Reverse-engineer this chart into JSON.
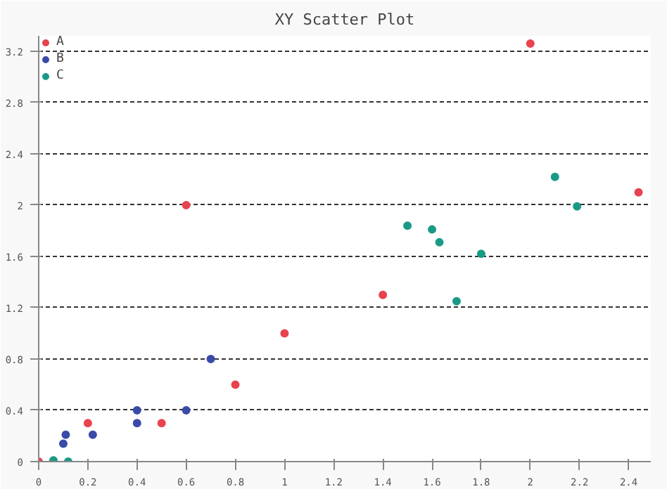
{
  "chart_data": {
    "type": "scatter",
    "title": "XY Scatter Plot",
    "legend": "top left",
    "grid": "y",
    "marker": "circle",
    "xlim": [
      0,
      2.49
    ],
    "ylim": [
      0,
      3.32
    ],
    "xticks": [
      0,
      0.2,
      0.4,
      0.6,
      0.8,
      1,
      1.2,
      1.4,
      1.6,
      1.8,
      2,
      2.2,
      2.4
    ],
    "yticks": [
      0,
      0.4,
      0.8,
      1.2,
      1.6,
      2,
      2.4,
      2.8,
      3.2
    ],
    "series": [
      {
        "name": "A",
        "color": "#e8434e",
        "x": [
          0,
          0.2,
          0.5,
          0.6,
          0.8,
          1.0,
          1.4,
          2.0,
          2.44
        ],
        "values": [
          0,
          0.3,
          0.3,
          2.0,
          0.6,
          1.0,
          1.3,
          3.26,
          2.1
        ]
      },
      {
        "name": "B",
        "color": "#3a4aa8",
        "x": [
          0.1,
          0.11,
          0.22,
          0.4,
          0.4,
          0.6,
          0.7
        ],
        "values": [
          0.14,
          0.21,
          0.21,
          0.3,
          0.4,
          0.4,
          0.8
        ]
      },
      {
        "name": "C",
        "color": "#1a9a86",
        "x": [
          0.06,
          0.12,
          1.5,
          1.6,
          1.63,
          1.7,
          1.8,
          2.1,
          2.19
        ],
        "values": [
          0.01,
          0.0,
          1.84,
          1.81,
          1.71,
          1.25,
          1.62,
          2.22,
          1.99
        ]
      }
    ]
  }
}
